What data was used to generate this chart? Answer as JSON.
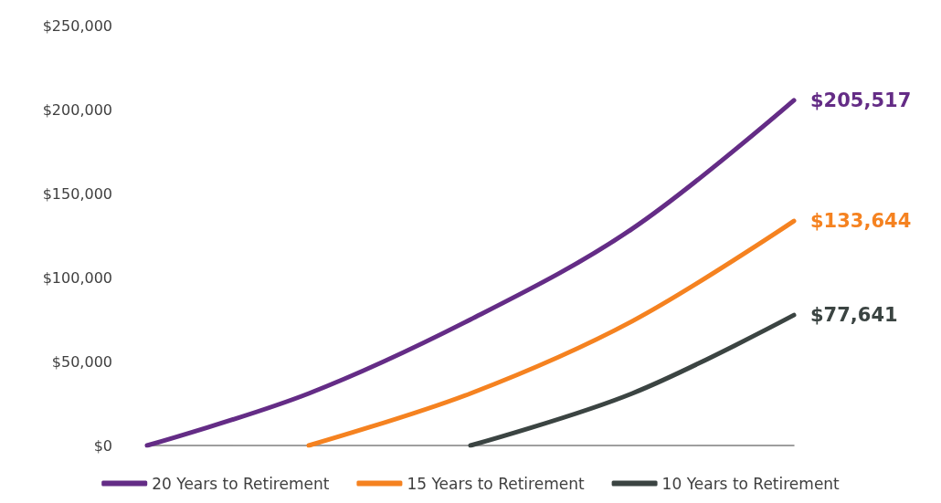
{
  "chart_data": {
    "type": "line",
    "categories": [
      null,
      null,
      null,
      null,
      null
    ],
    "series": [
      {
        "name": "20 Years to Retirement",
        "color": "#642c86",
        "values": [
          0,
          31000,
          75000,
          129000,
          205517
        ],
        "value_labels": [
          null,
          null,
          null,
          null,
          "$205,517"
        ]
      },
      {
        "name": "15 Years to Retirement",
        "color": "#f58220",
        "values": [
          null,
          0,
          31000,
          74000,
          133644
        ],
        "value_labels": [
          null,
          null,
          null,
          null,
          "$133,644"
        ]
      },
      {
        "name": "10 Years to Retirement",
        "color": "#3b4442",
        "values": [
          null,
          null,
          0,
          31000,
          77641
        ],
        "value_labels": [
          null,
          null,
          null,
          null,
          "$77,641"
        ]
      }
    ],
    "ylim": [
      0,
      250000
    ],
    "yticks": [
      {
        "value": 0,
        "label": "$0"
      },
      {
        "value": 50000,
        "label": "$50,000"
      },
      {
        "value": 100000,
        "label": "$100,000"
      },
      {
        "value": 150000,
        "label": "$150,000"
      },
      {
        "value": 200000,
        "label": "$200,000"
      },
      {
        "value": 250000,
        "label": "$250,000"
      }
    ],
    "grid": false,
    "legend": "bottom",
    "marker": "none",
    "line_style": "solid"
  }
}
